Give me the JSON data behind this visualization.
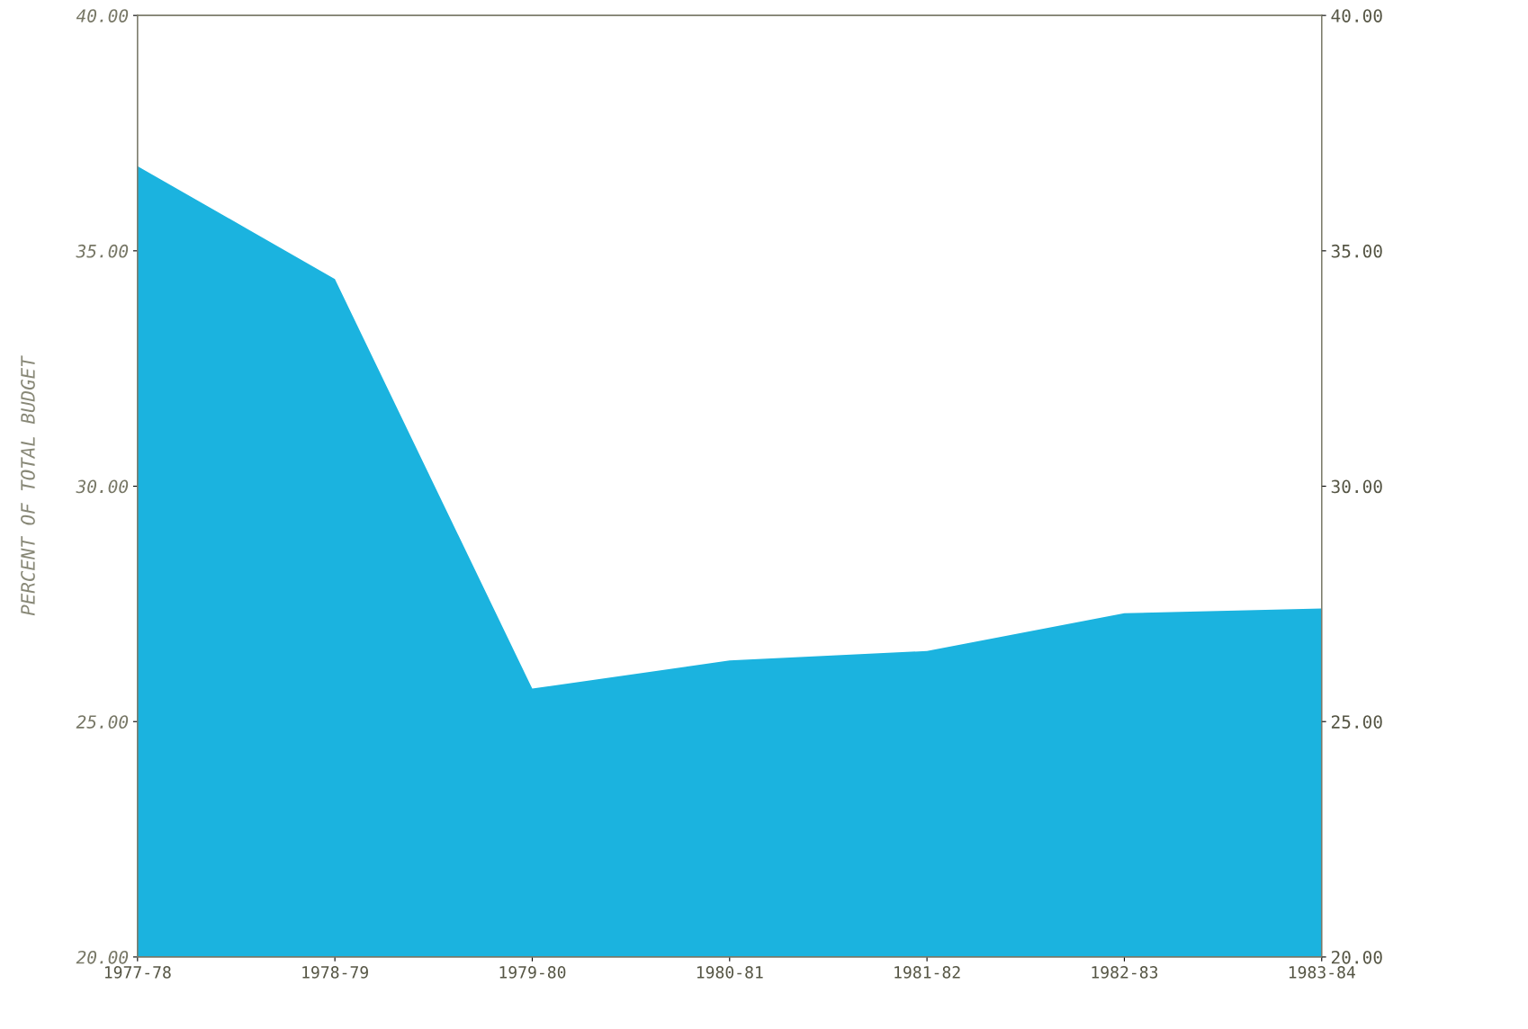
{
  "chart_data": {
    "type": "area",
    "ylabel": "PERCENT OF TOTAL BUDGET",
    "categories": [
      "1977-78",
      "1978-79",
      "1979-80",
      "1980-81",
      "1981-82",
      "1982-83",
      "1983-84"
    ],
    "series": [
      {
        "color": "#1bb3df",
        "values": [
          36.8,
          34.4,
          25.7,
          26.3,
          26.5,
          27.3,
          27.4
        ]
      }
    ],
    "ylim": [
      20,
      40
    ],
    "yticks": [
      {
        "value": 20,
        "label": "20.00"
      },
      {
        "value": 25,
        "label": "25.00"
      },
      {
        "value": 30,
        "label": "30.00"
      },
      {
        "value": 35,
        "label": "35.00"
      },
      {
        "value": 40,
        "label": "40.00"
      }
    ],
    "y2lim": [
      20,
      40
    ],
    "y2ticks": [
      {
        "value": 20,
        "label": "20.00"
      },
      {
        "value": 25,
        "label": "25.00"
      },
      {
        "value": 30,
        "label": "30.00"
      },
      {
        "value": 35,
        "label": "35.00"
      },
      {
        "value": 40,
        "label": "40.00"
      }
    ],
    "grid": false,
    "legend": false
  }
}
